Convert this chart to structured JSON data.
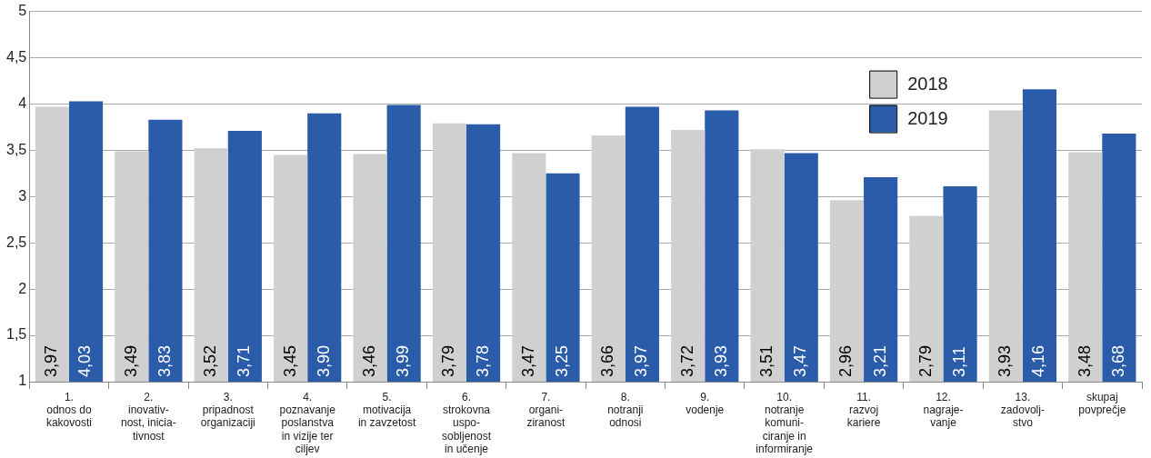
{
  "chart_data": {
    "type": "bar",
    "categories": [
      "1.\nodnos do\nkakovosti",
      "2.\ninovativ-\nnost, inicia-\ntivnost",
      "3.\npripadnost\norganizaciji",
      "4.\npoznavanje\nposlanstva\nin vizije ter\nciljev",
      "5.\nmotivacija\nin zavzetost",
      "6.\nstrokovna\nuspo-\nsobljenost\nin učenje",
      "7.\norgani-\nziranost",
      "8.\nnotranji\nodnosi",
      "9.\nvodenje",
      "10.\nnotranje\nkomuni-\nciranje in\ninformiranje",
      "11.\nrazvoj\nkariere",
      "12.\nnagraje-\nvanje",
      "13.\nzadovolj-\nstvo",
      "skupaj\npovprečje"
    ],
    "series": [
      {
        "name": "2018",
        "color": "#d0d0d0",
        "values": [
          3.97,
          3.49,
          3.52,
          3.45,
          3.46,
          3.79,
          3.47,
          3.66,
          3.72,
          3.51,
          2.96,
          2.79,
          3.93,
          3.48
        ],
        "value_labels": [
          "3,97",
          "3,49",
          "3,52",
          "3,45",
          "3,46",
          "3,79",
          "3,47",
          "3,66",
          "3,72",
          "3,51",
          "2,96",
          "2,79",
          "3,93",
          "3,48"
        ]
      },
      {
        "name": "2019",
        "color": "#2a5caa",
        "values": [
          4.03,
          3.83,
          3.71,
          3.9,
          3.99,
          3.78,
          3.25,
          3.97,
          3.93,
          3.47,
          3.21,
          3.11,
          4.16,
          3.68
        ],
        "value_labels": [
          "4,03",
          "3,83",
          "3,71",
          "3,90",
          "3,99",
          "3,78",
          "3,25",
          "3,97",
          "3,93",
          "3,47",
          "3,21",
          "3,11",
          "4,16",
          "3,68"
        ]
      }
    ],
    "ylim": [
      1,
      5
    ],
    "yticks": [
      1,
      {
        "value": 1.5,
        "label": "1,5"
      },
      2,
      {
        "value": 2.5,
        "label": "2,5"
      },
      3,
      {
        "value": 3.5,
        "label": "3,5"
      },
      4,
      {
        "value": 4.5,
        "label": "4,5"
      },
      5
    ],
    "grid": "y",
    "legend": "top right"
  }
}
